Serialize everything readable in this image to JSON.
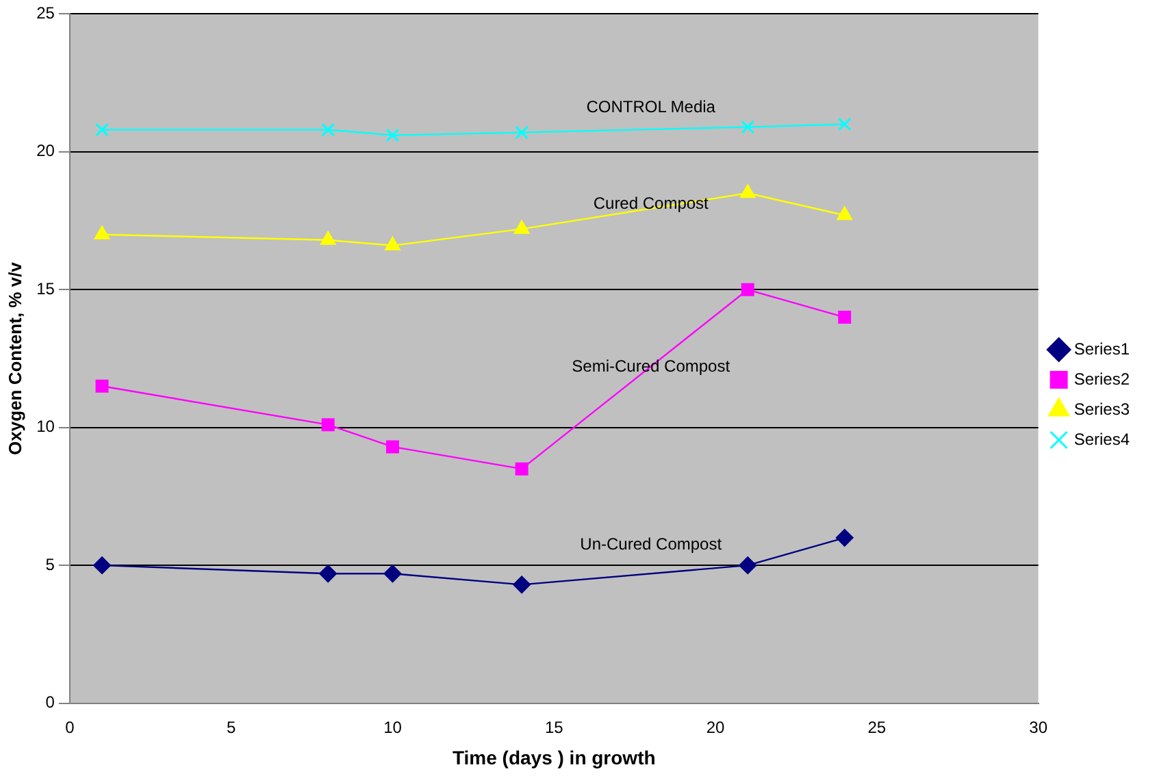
{
  "chart_data": {
    "type": "line",
    "xlabel": "Time (days ) in growth",
    "ylabel": "Oxygen Content, % v/v",
    "xlim": [
      0,
      30
    ],
    "xticks": [
      0,
      5,
      10,
      15,
      20,
      25,
      30
    ],
    "ylim": [
      0,
      25
    ],
    "yticks": [
      0,
      5,
      10,
      15,
      20,
      25
    ],
    "grid": "y",
    "legend": "right",
    "line_style": "solid",
    "series": [
      {
        "name": "Series1",
        "color": "#000080",
        "marker": "diamond",
        "x": [
          1,
          8,
          10,
          14,
          21,
          24
        ],
        "values": [
          5.0,
          4.7,
          4.7,
          4.3,
          5.0,
          6.0
        ]
      },
      {
        "name": "Series2",
        "color": "#ff00ff",
        "marker": "square",
        "x": [
          1,
          8,
          10,
          14,
          21,
          24
        ],
        "values": [
          11.5,
          10.1,
          9.3,
          8.5,
          15.0,
          14.0
        ]
      },
      {
        "name": "Series3",
        "color": "#ffff00",
        "marker": "triangle",
        "x": [
          1,
          8,
          10,
          14,
          21,
          24
        ],
        "values": [
          17.0,
          16.8,
          16.6,
          17.2,
          18.5,
          17.7
        ]
      },
      {
        "name": "Series4",
        "color": "#00ffff",
        "marker": "cross",
        "x": [
          1,
          8,
          10,
          14,
          21,
          24
        ],
        "values": [
          20.8,
          20.8,
          20.6,
          20.7,
          20.9,
          21.0
        ]
      }
    ],
    "annotations": [
      "Un-Cured Compost",
      "Semi-Cured Compost",
      "Cured Compost",
      "CONTROL Media"
    ]
  }
}
